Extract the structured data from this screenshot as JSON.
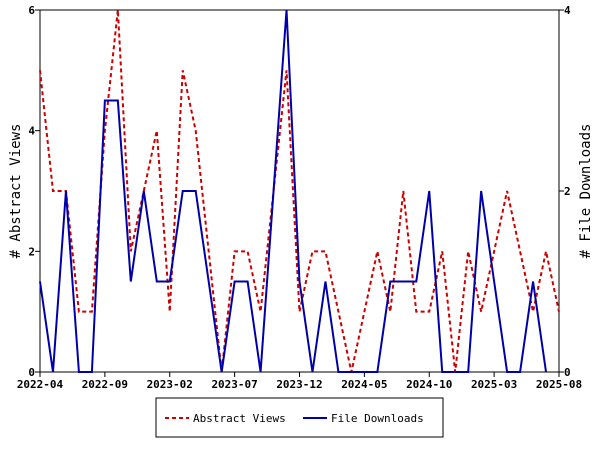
{
  "chart_data": {
    "type": "line",
    "x_tick_labels": [
      "2022-04",
      "2022-09",
      "2023-02",
      "2023-07",
      "2023-12",
      "2024-05",
      "2024-10",
      "2025-03",
      "2025-08"
    ],
    "x_tick_months": [
      0,
      5,
      10,
      15,
      20,
      25,
      30,
      35,
      40
    ],
    "y_left": {
      "label": "# Abstract Views",
      "lim": [
        0,
        6
      ],
      "ticks": [
        0,
        2,
        4,
        6
      ]
    },
    "y_right": {
      "label": "# File Downloads",
      "lim": [
        0,
        4
      ],
      "ticks": [
        0,
        2,
        4
      ]
    },
    "grid": false,
    "legend_placement": "bottom",
    "series": [
      {
        "name": "Abstract Views",
        "axis": "left",
        "color": "#cc0000",
        "style": "dashed",
        "points": [
          [
            0,
            5
          ],
          [
            1,
            3
          ],
          [
            2,
            3
          ],
          [
            3,
            1
          ],
          [
            4,
            1
          ],
          [
            5,
            4
          ],
          [
            6,
            6
          ],
          [
            7,
            2
          ],
          [
            8,
            3
          ],
          [
            9,
            4
          ],
          [
            10,
            1
          ],
          [
            11,
            5
          ],
          [
            12,
            4
          ],
          [
            13,
            2
          ],
          [
            14,
            0
          ],
          [
            15,
            2
          ],
          [
            16,
            2
          ],
          [
            17,
            1
          ],
          [
            18,
            3
          ],
          [
            19,
            5
          ],
          [
            20,
            1
          ],
          [
            21,
            2
          ],
          [
            22,
            2
          ],
          [
            23,
            1
          ],
          [
            24,
            0
          ],
          [
            25,
            1
          ],
          [
            26,
            2
          ],
          [
            27,
            1
          ],
          [
            28,
            3
          ],
          [
            29,
            1
          ],
          [
            30,
            1
          ],
          [
            31,
            2
          ],
          [
            32,
            0
          ],
          [
            33,
            2
          ],
          [
            34,
            1
          ],
          [
            35,
            2
          ],
          [
            36,
            3
          ],
          [
            37,
            2
          ],
          [
            38,
            1
          ],
          [
            39,
            2
          ],
          [
            40,
            1
          ]
        ]
      },
      {
        "name": "File Downloads",
        "axis": "right",
        "color": "#0000aa",
        "style": "solid",
        "points": [
          [
            0,
            1
          ],
          [
            1,
            0
          ],
          [
            2,
            2
          ],
          [
            3,
            0
          ],
          [
            4,
            0
          ],
          [
            5,
            3
          ],
          [
            6,
            3
          ],
          [
            7,
            1
          ],
          [
            8,
            2
          ],
          [
            9,
            1
          ],
          [
            10,
            1
          ],
          [
            11,
            2
          ],
          [
            12,
            2
          ],
          [
            13,
            1
          ],
          [
            14,
            0
          ],
          [
            15,
            1
          ],
          [
            16,
            1
          ],
          [
            17,
            0
          ],
          [
            18,
            2
          ],
          [
            19,
            4
          ],
          [
            20,
            1
          ],
          [
            21,
            0
          ],
          [
            22,
            1
          ],
          [
            23,
            0
          ],
          [
            24,
            0
          ],
          [
            25,
            0
          ],
          [
            26,
            0
          ],
          [
            27,
            1
          ],
          [
            28,
            1
          ],
          [
            29,
            1
          ],
          [
            30,
            2
          ],
          [
            31,
            0
          ],
          [
            32,
            0
          ],
          [
            33,
            0
          ],
          [
            34,
            2
          ],
          [
            35,
            1
          ],
          [
            36,
            0
          ],
          [
            37,
            0
          ],
          [
            38,
            1
          ],
          [
            39,
            0
          ]
        ]
      }
    ]
  }
}
